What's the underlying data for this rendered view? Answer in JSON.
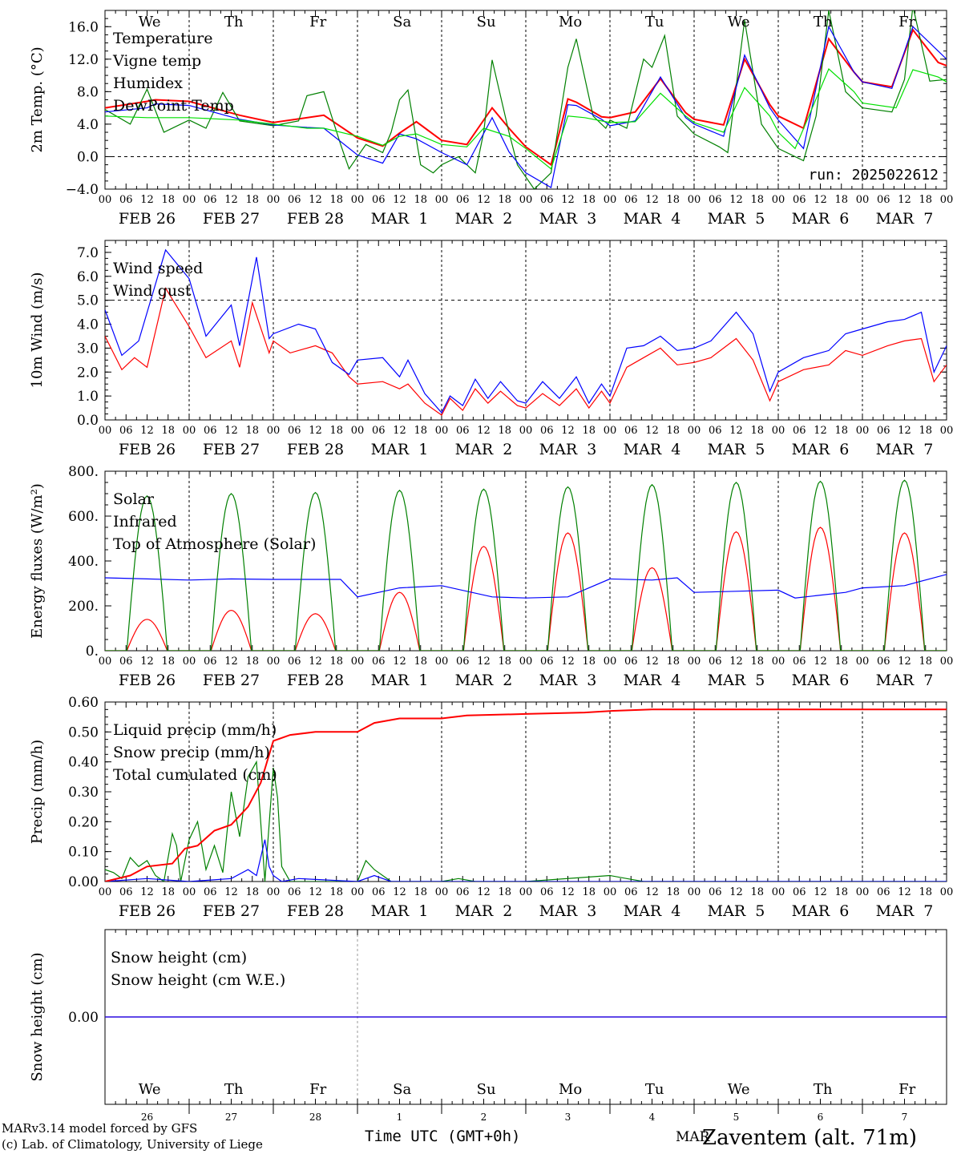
{
  "days": [
    "We",
    "Th",
    "Fr",
    "Sa",
    "Su",
    "Mo",
    "Tu",
    "We",
    "Th",
    "Fr"
  ],
  "weekend_days": [
    3,
    4
  ],
  "date_labels": [
    "FEB 26",
    "FEB 27",
    "FEB 28",
    "MAR  1",
    "MAR  2",
    "MAR  3",
    "MAR  4",
    "MAR  5",
    "MAR  6",
    "MAR  7"
  ],
  "hour_ticks": [
    "00",
    "06",
    "12",
    "18"
  ],
  "bottom_day_numbers": [
    "26",
    "27",
    "28",
    "1",
    "2",
    "3",
    "4",
    "5",
    "6",
    "7"
  ],
  "bottom_month": "MAR",
  "xlabel": "Time UTC (GMT+0h)",
  "credits": [
    "MARv3.14 model forced by GFS",
    "(c) Lab. of Climatology, University of Liege"
  ],
  "station": "Zaventem (alt. 71m)",
  "colors": {
    "red": "#ff0000",
    "green": "#008000",
    "blue": "#0000ff",
    "lightgreen": "#00e000",
    "weekend": "#ff0000"
  },
  "chart_data": [
    {
      "type": "line",
      "ylabel": "2m Temp. (°C)",
      "ylim": [
        -4,
        18
      ],
      "yticks": [
        "16.0",
        "12.0",
        "8.0",
        "4.0",
        "0.0",
        "−4.0"
      ],
      "ytick_values": [
        16,
        12,
        8,
        4,
        0,
        -4
      ],
      "annotation": "run: 2025022612",
      "ref_line": 0,
      "x_days": [
        0,
        10
      ],
      "series": [
        {
          "name": "Temperature",
          "color": "red",
          "x": [
            0,
            0.5,
            0.6,
            1,
            1.6,
            2,
            2.6,
            3,
            3.3,
            3.5,
            3.7,
            4,
            4.3,
            4.6,
            4.8,
            5,
            5.3,
            5.5,
            5.6,
            5.9,
            6,
            6.3,
            6.6,
            6.9,
            7,
            7.35,
            7.6,
            7.9,
            8,
            8.3,
            8.6,
            8.9,
            9,
            9.35,
            9.6,
            9.9,
            10
          ],
          "values": [
            6,
            6.8,
            7,
            6.8,
            5.1,
            4.2,
            5.1,
            2.3,
            1.3,
            2.9,
            4.3,
            2.0,
            1.5,
            6.0,
            3.5,
            1.2,
            -1.0,
            7.1,
            6.7,
            4.9,
            4.8,
            5.5,
            9.6,
            5.4,
            4.6,
            3.9,
            12.0,
            6.4,
            5.0,
            3.5,
            14.5,
            10.4,
            9.2,
            8.6,
            15.6,
            11.6,
            11.2
          ]
        },
        {
          "name": "Vigne temp",
          "color": "green",
          "x": [
            0,
            0.3,
            0.5,
            0.7,
            1,
            1.2,
            1.4,
            1.6,
            2,
            2.3,
            2.4,
            2.6,
            2.8,
            2.9,
            3.1,
            3.3,
            3.4,
            3.5,
            3.6,
            3.75,
            3.9,
            4,
            4.2,
            4.4,
            4.5,
            4.6,
            4.8,
            4.9,
            5,
            5.1,
            5.3,
            5.5,
            5.6,
            5.8,
            5.95,
            6,
            6.2,
            6.4,
            6.5,
            6.65,
            6.8,
            7,
            7.3,
            7.4,
            7.6,
            7.8,
            8,
            8.3,
            8.45,
            8.6,
            8.8,
            9,
            9.35,
            9.5,
            9.6,
            9.8,
            10
          ],
          "values": [
            5.8,
            4.0,
            8.3,
            3.0,
            4.5,
            3.5,
            7.9,
            4.4,
            3.8,
            4.4,
            7.5,
            8.0,
            1.5,
            -1.5,
            1.5,
            0.5,
            3.0,
            7.0,
            8.2,
            -1.0,
            -2.0,
            -1.0,
            0,
            -2,
            3,
            11.9,
            3.0,
            -1,
            -2.5,
            -4.0,
            -2,
            11,
            14.5,
            5.0,
            3.5,
            4.5,
            3.5,
            12,
            11,
            14.9,
            5.0,
            2.8,
            1.2,
            0.5,
            16.8,
            4.0,
            1.0,
            -0.5,
            5,
            18.0,
            8.0,
            6.0,
            5.5,
            9.5,
            18.5,
            9.3,
            9.5
          ]
        },
        {
          "name": "Humidex",
          "color": "blue",
          "x": [
            0,
            0.5,
            0.6,
            1,
            1.6,
            2,
            2.4,
            2.6,
            3,
            3.3,
            3.5,
            3.7,
            4,
            4.3,
            4.6,
            4.8,
            5,
            5.3,
            5.5,
            5.6,
            5.9,
            6,
            6.3,
            6.6,
            6.9,
            7,
            7.35,
            7.6,
            7.9,
            8,
            8.3,
            8.6,
            8.9,
            9,
            9.35,
            9.6,
            9.9,
            10
          ],
          "values": [
            5.5,
            6.0,
            6.5,
            6.3,
            4.6,
            3.9,
            3.6,
            3.5,
            0.2,
            -0.8,
            2.8,
            2.2,
            0.5,
            -1.0,
            4.8,
            0.6,
            -2.0,
            -3.8,
            6.4,
            6.3,
            4.6,
            3.8,
            4.4,
            9.8,
            4.8,
            4.0,
            2.5,
            12.5,
            6.0,
            4.5,
            1.0,
            16.0,
            10.4,
            9.2,
            8.4,
            16.0,
            13.0,
            12.0
          ]
        },
        {
          "name": "DewPoint Temp",
          "color": "lightgreen",
          "x": [
            0,
            0.5,
            1,
            1.6,
            2,
            2.4,
            2.6,
            3,
            3.3,
            3.5,
            3.7,
            4,
            4.3,
            4.5,
            4.8,
            5,
            5.3,
            5.5,
            5.7,
            6,
            6.3,
            6.6,
            6.9,
            7,
            7.35,
            7.6,
            7.9,
            8,
            8.2,
            8.6,
            8.9,
            9,
            9.4,
            9.6,
            9.9,
            10
          ],
          "values": [
            5.0,
            4.8,
            4.8,
            4.5,
            4.0,
            3.5,
            3.5,
            2.5,
            1.4,
            2.5,
            2.8,
            1.5,
            1.2,
            3.5,
            2.5,
            1.0,
            -1.5,
            5.0,
            4.8,
            4.2,
            4.3,
            7.8,
            5.0,
            4.2,
            3.0,
            8.5,
            5.0,
            3.0,
            1.0,
            10.8,
            8.0,
            6.6,
            6.0,
            10.7,
            9.8,
            9.2
          ]
        }
      ]
    },
    {
      "type": "line",
      "ylabel": "10m Wind (m/s)",
      "ylim": [
        0,
        7.5
      ],
      "yticks": [
        "7.0",
        "6.0",
        "5.0",
        "4.0",
        "3.0",
        "2.0",
        "1.0",
        "0.0"
      ],
      "ytick_values": [
        7,
        6,
        5,
        4,
        3,
        2,
        1,
        0
      ],
      "ref_line": 5,
      "x_days": [
        0,
        10
      ],
      "series": [
        {
          "name": "Wind speed",
          "color": "red",
          "x": [
            0,
            0.2,
            0.35,
            0.5,
            0.72,
            1,
            1.2,
            1.5,
            1.6,
            1.75,
            1.95,
            2,
            2.2,
            2.5,
            2.7,
            2.9,
            3,
            3.3,
            3.5,
            3.6,
            3.8,
            4,
            4.1,
            4.25,
            4.4,
            4.55,
            4.7,
            4.9,
            5,
            5.2,
            5.4,
            5.6,
            5.75,
            5.9,
            6,
            6.2,
            6.4,
            6.6,
            6.8,
            7,
            7.2,
            7.5,
            7.7,
            7.9,
            8,
            8.3,
            8.6,
            8.8,
            9,
            9.3,
            9.5,
            9.7,
            9.85,
            10
          ],
          "values": [
            3.5,
            2.1,
            2.6,
            2.2,
            5.5,
            3.9,
            2.6,
            3.3,
            2.2,
            4.9,
            2.8,
            3.3,
            2.8,
            3.1,
            2.8,
            1.8,
            1.5,
            1.6,
            1.3,
            1.5,
            0.7,
            0.2,
            0.9,
            0.4,
            1.3,
            0.7,
            1.2,
            0.6,
            0.5,
            1.1,
            0.6,
            1.3,
            0.5,
            1.2,
            0.7,
            2.2,
            2.6,
            3.0,
            2.3,
            2.4,
            2.6,
            3.4,
            2.5,
            0.8,
            1.6,
            2.1,
            2.3,
            2.9,
            2.7,
            3.1,
            3.3,
            3.4,
            1.6,
            2.3
          ]
        },
        {
          "name": "Wind gust",
          "color": "blue",
          "x": [
            0,
            0.2,
            0.4,
            0.72,
            1,
            1.2,
            1.5,
            1.6,
            1.8,
            1.95,
            2,
            2.3,
            2.5,
            2.7,
            2.9,
            3,
            3.3,
            3.5,
            3.6,
            3.8,
            4,
            4.1,
            4.25,
            4.4,
            4.55,
            4.7,
            4.9,
            5,
            5.2,
            5.4,
            5.6,
            5.75,
            5.9,
            6,
            6.2,
            6.4,
            6.6,
            6.8,
            7,
            7.2,
            7.5,
            7.7,
            7.9,
            8,
            8.3,
            8.6,
            8.8,
            9,
            9.3,
            9.5,
            9.7,
            9.85,
            10
          ],
          "values": [
            4.6,
            2.7,
            3.3,
            7.1,
            5.9,
            3.5,
            4.8,
            3.1,
            6.8,
            3.4,
            3.6,
            4.0,
            3.8,
            2.4,
            1.9,
            2.5,
            2.6,
            1.8,
            2.5,
            1.1,
            0.3,
            1.0,
            0.6,
            1.7,
            0.9,
            1.6,
            0.8,
            0.7,
            1.6,
            0.9,
            1.8,
            0.7,
            1.5,
            1.0,
            3.0,
            3.1,
            3.5,
            2.9,
            3.0,
            3.3,
            4.5,
            3.6,
            1.2,
            2.0,
            2.6,
            2.9,
            3.6,
            3.8,
            4.1,
            4.2,
            4.5,
            2.0,
            3.1
          ]
        }
      ]
    },
    {
      "type": "line",
      "ylabel": "Energy fluxes (W/m²)",
      "ylim": [
        0,
        800
      ],
      "yticks": [
        "800.",
        "600.",
        "400.",
        "200.",
        "0."
      ],
      "ytick_values": [
        800,
        600,
        400,
        200,
        0
      ],
      "x_days": [
        0,
        10
      ],
      "series": [
        {
          "name": "Solar",
          "color": "red",
          "peaks": [
            140,
            180,
            165,
            260,
            465,
            525,
            370,
            530,
            550,
            525
          ]
        },
        {
          "name": "Infrared",
          "color": "blue",
          "x": [
            0,
            0.5,
            1,
            1.5,
            2,
            2.8,
            3,
            3.5,
            4,
            4.6,
            5,
            5.5,
            6,
            6.5,
            6.8,
            7,
            7.5,
            8,
            8.2,
            8.8,
            9,
            9.5,
            10
          ],
          "values": [
            325,
            320,
            315,
            320,
            318,
            318,
            240,
            280,
            290,
            240,
            235,
            240,
            320,
            315,
            325,
            260,
            265,
            270,
            235,
            260,
            280,
            290,
            340
          ]
        },
        {
          "name": "Top of Atmosphere (Solar)",
          "color": "green",
          "peaks": [
            690,
            700,
            705,
            715,
            720,
            730,
            740,
            750,
            755,
            760
          ]
        }
      ]
    },
    {
      "type": "line",
      "ylabel": "Precip (mm/h)",
      "ylim": [
        0,
        0.6
      ],
      "yticks": [
        "0.60",
        "0.50",
        "0.40",
        "0.30",
        "0.20",
        "0.10",
        "0.00"
      ],
      "ytick_values": [
        0.6,
        0.5,
        0.4,
        0.3,
        0.2,
        0.1,
        0
      ],
      "x_days": [
        0,
        10
      ],
      "series": [
        {
          "name": "Liquid precip (mm/h)",
          "color": "green",
          "x": [
            0,
            0.1,
            0.2,
            0.3,
            0.4,
            0.5,
            0.6,
            0.7,
            0.8,
            0.85,
            0.9,
            1,
            1.1,
            1.2,
            1.3,
            1.4,
            1.5,
            1.6,
            1.7,
            1.8,
            1.9,
            2,
            2.05,
            2.1,
            2.2,
            2.5,
            3,
            3.1,
            3.2,
            3.4,
            3.6,
            4,
            4.2,
            4.4,
            5,
            6,
            6.2,
            6.4,
            10
          ],
          "values": [
            0.04,
            0.03,
            0.01,
            0.08,
            0.05,
            0.07,
            0.02,
            0.0,
            0.16,
            0.12,
            0.0,
            0.14,
            0.2,
            0.04,
            0.12,
            0.03,
            0.3,
            0.15,
            0.35,
            0.4,
            0.0,
            0.38,
            0.28,
            0.05,
            0.0,
            0.0,
            0.0,
            0.07,
            0.04,
            0.0,
            0.0,
            0.0,
            0.01,
            0.0,
            0.0,
            0.02,
            0.01,
            0.0,
            0.0
          ]
        },
        {
          "name": "Snow precip (mm/h)",
          "color": "blue",
          "x": [
            0,
            0.5,
            1,
            1.5,
            1.7,
            1.8,
            1.9,
            1.95,
            2.0,
            2.1,
            2.3,
            3,
            3.2,
            3.4,
            10
          ],
          "values": [
            0.0,
            0.01,
            0.0,
            0.01,
            0.04,
            0.02,
            0.14,
            0.05,
            0.02,
            0.0,
            0.01,
            0.0,
            0.02,
            0.0,
            0.0
          ]
        },
        {
          "name": "Total cumulated (cm)",
          "color": "red",
          "x": [
            0,
            0.3,
            0.5,
            0.8,
            0.95,
            1.1,
            1.3,
            1.5,
            1.7,
            1.85,
            2,
            2.2,
            2.5,
            3,
            3.2,
            3.5,
            4,
            4.3,
            5,
            5.7,
            6,
            6.5,
            10
          ],
          "values": [
            0.0,
            0.02,
            0.05,
            0.06,
            0.11,
            0.12,
            0.17,
            0.19,
            0.25,
            0.33,
            0.47,
            0.49,
            0.5,
            0.5,
            0.53,
            0.545,
            0.545,
            0.555,
            0.56,
            0.565,
            0.57,
            0.575,
            0.575
          ]
        }
      ]
    },
    {
      "type": "line",
      "ylabel": "Snow height (cm)",
      "ylim": [
        -1,
        1
      ],
      "yticks": [
        "0.00"
      ],
      "ytick_values": [
        0
      ],
      "x_days": [
        0,
        10
      ],
      "series": [
        {
          "name": "Snow height (cm)",
          "color": "red",
          "x": [
            0,
            10
          ],
          "values": [
            0,
            0
          ]
        },
        {
          "name": "Snow height (cm W.E.)",
          "color": "blue",
          "x": [
            0,
            10
          ],
          "values": [
            0,
            0
          ]
        }
      ]
    }
  ]
}
